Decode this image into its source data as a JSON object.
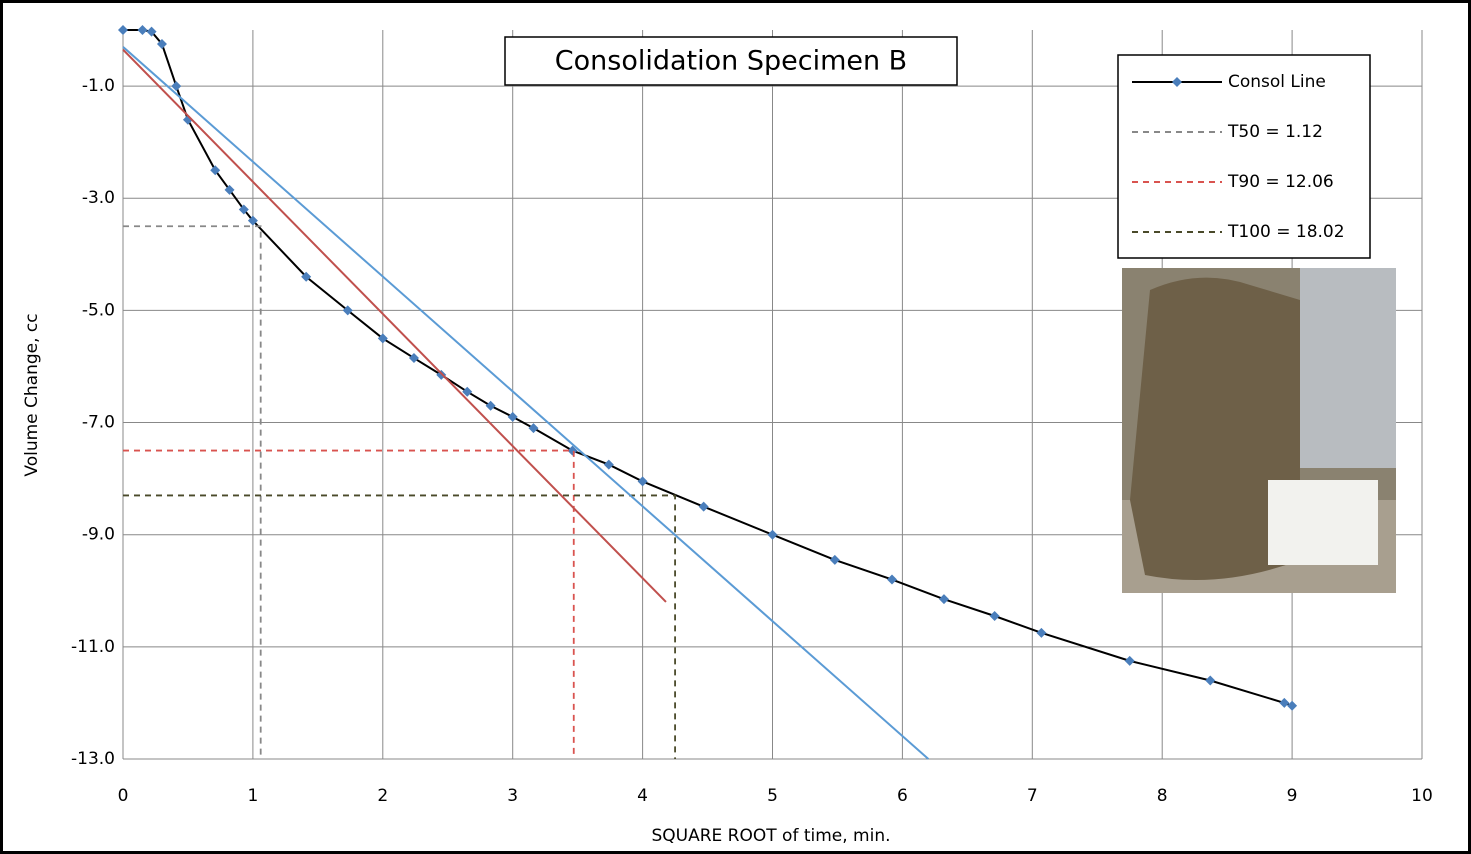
{
  "chart_data": {
    "type": "line",
    "title": "Consolidation Specimen B",
    "x_label": "SQUARE ROOT of time, min.",
    "y_label": "Volume Change, cc",
    "xlim": [
      0,
      10
    ],
    "ylim": [
      -13,
      0
    ],
    "xticks": [
      0,
      1,
      2,
      3,
      4,
      5,
      6,
      7,
      8,
      9,
      10
    ],
    "yticks": [
      {
        "value": -1,
        "label": "-1.0"
      },
      {
        "value": -3,
        "label": "-3.0"
      },
      {
        "value": -5,
        "label": "-5.0"
      },
      {
        "value": -7,
        "label": "-7.0"
      },
      {
        "value": -9,
        "label": "-9.0"
      },
      {
        "value": -11,
        "label": "-11.0"
      },
      {
        "value": -13,
        "label": "-13.0"
      }
    ],
    "grid": true,
    "legend": "upper right",
    "series": [
      {
        "name": "Consol Line",
        "color": "#000000",
        "marker_color": "#4a7ebb",
        "style": "solid",
        "markers": true,
        "x": [
          0,
          0.15,
          0.22,
          0.3,
          0.41,
          0.5,
          0.71,
          0.82,
          0.93,
          1.0,
          1.41,
          1.73,
          2.0,
          2.24,
          2.45,
          2.65,
          2.83,
          3.0,
          3.16,
          3.46,
          3.74,
          4.0,
          4.47,
          5.0,
          5.48,
          5.92,
          6.32,
          6.71,
          7.07,
          7.75,
          8.37,
          8.94,
          9.0
        ],
        "values": [
          0,
          0,
          -0.03,
          -0.25,
          -1.0,
          -1.6,
          -2.5,
          -2.85,
          -3.2,
          -3.4,
          -4.4,
          -5.0,
          -5.5,
          -5.85,
          -6.15,
          -6.45,
          -6.7,
          -6.9,
          -7.1,
          -7.5,
          -7.75,
          -8.05,
          -8.5,
          -9.0,
          -9.45,
          -9.8,
          -10.15,
          -10.45,
          -10.75,
          -11.25,
          -11.6,
          -12.0,
          -12.05
        ]
      },
      {
        "name": "T50 = 1.12",
        "color": "#888888",
        "style": "dashed",
        "x": [
          0,
          1.06,
          1.06
        ],
        "values": [
          -3.5,
          -3.5,
          -13
        ]
      },
      {
        "name": "T90 = 12.06",
        "color": "#d9534f",
        "style": "dashed",
        "x": [
          0,
          3.47,
          3.47
        ],
        "values": [
          -7.5,
          -7.5,
          -13
        ]
      },
      {
        "name": "T100 = 18.02",
        "color": "#4a4a2a",
        "style": "dashed",
        "x": [
          0,
          4.25,
          4.25
        ],
        "values": [
          -8.3,
          -8.3,
          -13
        ]
      },
      {
        "color": "#c0504d",
        "style": "solid",
        "x": [
          0,
          4.18
        ],
        "values": [
          -0.35,
          -10.2
        ]
      },
      {
        "color": "#5b9bd5",
        "style": "solid",
        "x": [
          0,
          6.2
        ],
        "values": [
          -0.3,
          -13
        ]
      }
    ]
  }
}
